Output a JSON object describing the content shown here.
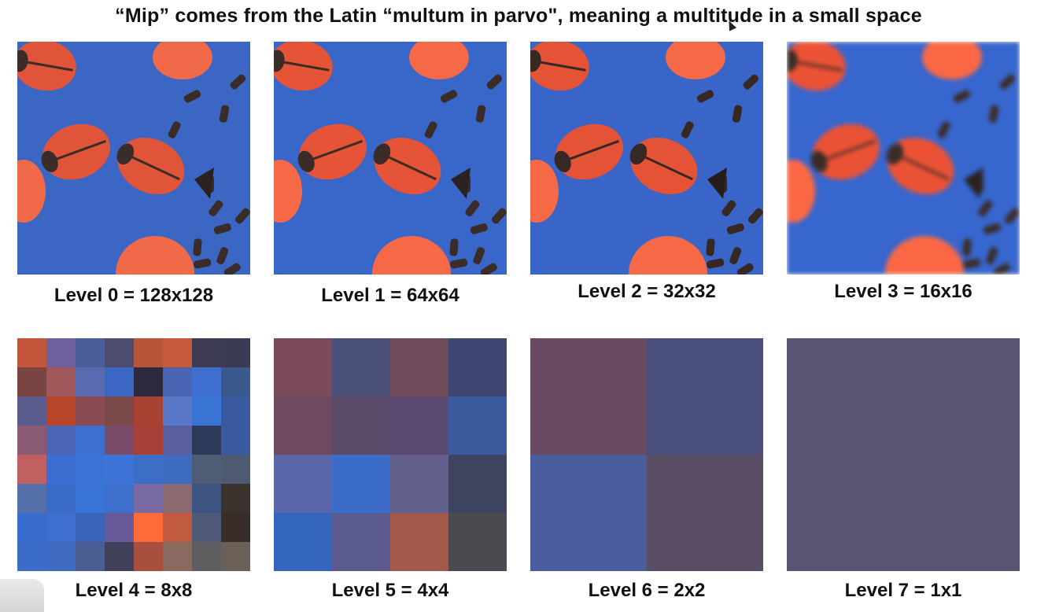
{
  "title": "“Mip” comes from the Latin “multum in parvo\", meaning a multitude in a small space",
  "levels": [
    {
      "label": "Level 0 = 128x128",
      "grid": 16,
      "image": "ladybug-candies"
    },
    {
      "label": "Level 1 = 64x64",
      "grid": 16,
      "image": "ladybug-candies"
    },
    {
      "label": "Level 2 = 32x32",
      "grid": 16,
      "image": "ladybug-candies"
    },
    {
      "label": "Level 3 = 16x16",
      "grid": 16,
      "image": "ladybug-candies"
    },
    {
      "label": "Level 4 = 8x8",
      "grid": 8,
      "image": "ladybug-candies"
    },
    {
      "label": "Level 5 = 4x4",
      "grid": 4,
      "image": "ladybug-candies"
    },
    {
      "label": "Level 6 = 2x2",
      "grid": 2,
      "image": "ladybug-candies"
    },
    {
      "label": "Level 7 = 1x1",
      "grid": 1,
      "image": "ladybug-candies"
    }
  ],
  "colors": {
    "blue": "#3b66c4",
    "red": "#e0553a",
    "orange": "#f06a4a",
    "dark": "#3a2c28",
    "purple": "#56507a"
  },
  "pixels": {
    "level4": [
      "#c2553a",
      "#6f5f9c",
      "#4a5e9a",
      "#4c4c6e",
      "#b85538",
      "#c45a3a",
      "#3d3b52",
      "#3a3a55",
      "#7a4442",
      "#a0585a",
      "#5a6ab0",
      "#3b66c4",
      "#2c2a3c",
      "#4a64b4",
      "#3e6ed0",
      "#3a5a8e",
      "#5a5b8c",
      "#b8452a",
      "#8a4a52",
      "#7a4a48",
      "#a84232",
      "#5a78c8",
      "#3a74d4",
      "#3a5aa0",
      "#8a5a72",
      "#4a66b4",
      "#3c6fd0",
      "#7a4c6a",
      "#a84038",
      "#5a5ea0",
      "#2e3a5a",
      "#3a5aa0",
      "#c06060",
      "#3b6ed0",
      "#3a72d6",
      "#3e74d8",
      "#3c6ec8",
      "#3e6cc0",
      "#4e5c76",
      "#4e5a72",
      "#5570a8",
      "#3a6cc8",
      "#3a74d6",
      "#3c70cc",
      "#7a6aa4",
      "#8a6a6e",
      "#3e5480",
      "#3a322c",
      "#3a6cd0",
      "#3e6ed0",
      "#3a64b8",
      "#6a5a9a",
      "#ff6a3a",
      "#c05a40",
      "#4e5a78",
      "#3a2c28",
      "#3a6cc8",
      "#3e6ac0",
      "#4a5e92",
      "#404058",
      "#a85040",
      "#8a6a60",
      "#5e5e60",
      "#6a6058"
    ],
    "level5": [
      "#7a4a5a",
      "#4a5078",
      "#6e4a5a",
      "#3c4670",
      "#6e4a60",
      "#5a4a6a",
      "#5a4a72",
      "#3a5a9e",
      "#5a66a8",
      "#3a6cc8",
      "#64608e",
      "#3e4460",
      "#3466c0",
      "#5a5a8e",
      "#a4584a",
      "#4a4a50"
    ],
    "level6": [
      "#6a4a62",
      "#4a4e7a",
      "#4a5e9e",
      "#5a4e64"
    ],
    "level7": [
      "#5a5474"
    ]
  }
}
